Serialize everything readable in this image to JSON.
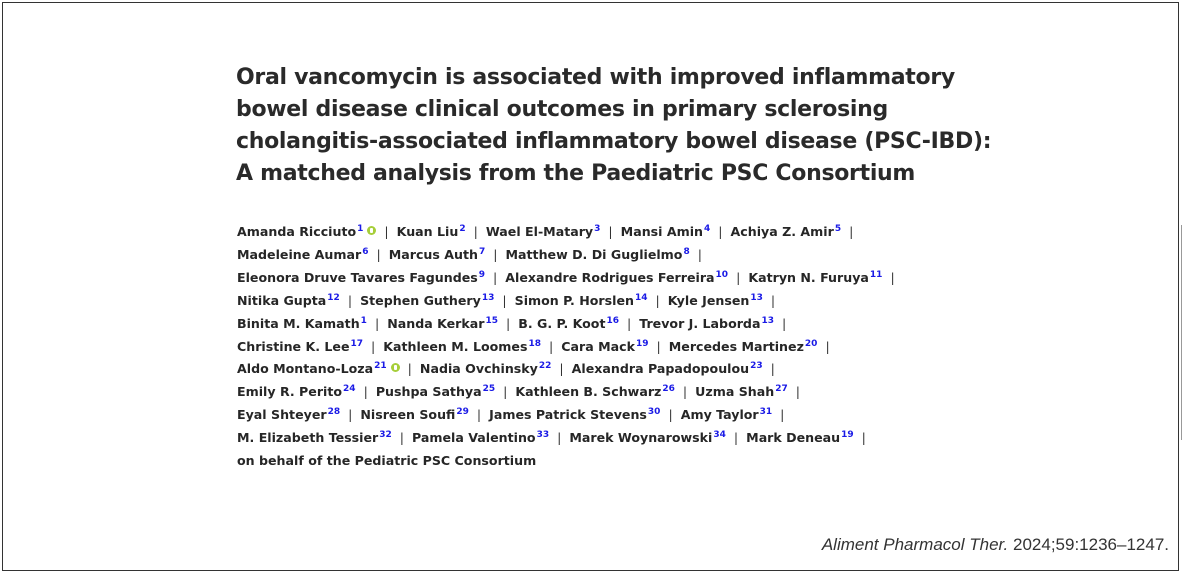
{
  "title_lines": [
    "Oral vancomycin is associated with improved inflammatory",
    "bowel disease clinical outcomes in primary sclerosing",
    "cholangitis-associated inflammatory bowel disease (PSC-IBD):",
    "A matched analysis from the Paediatric PSC Consortium"
  ],
  "author_lines": [
    [
      {
        "name": "Amanda Ricciuto",
        "sup": "1",
        "orcid": true
      },
      {
        "name": "Kuan Liu",
        "sup": "2"
      },
      {
        "name": "Wael El-Matary",
        "sup": "3"
      },
      {
        "name": "Mansi Amin",
        "sup": "4"
      },
      {
        "name": "Achiya Z. Amir",
        "sup": "5",
        "trailing_sep": true
      }
    ],
    [
      {
        "name": "Madeleine Aumar",
        "sup": "6"
      },
      {
        "name": "Marcus Auth",
        "sup": "7"
      },
      {
        "name": "Matthew D. Di Guglielmo",
        "sup": "8",
        "trailing_sep": true
      }
    ],
    [
      {
        "name": "Eleonora Druve Tavares Fagundes",
        "sup": "9"
      },
      {
        "name": "Alexandre Rodrigues Ferreira",
        "sup": "10"
      },
      {
        "name": "Katryn N. Furuya",
        "sup": "11",
        "trailing_sep": true
      }
    ],
    [
      {
        "name": "Nitika Gupta",
        "sup": "12"
      },
      {
        "name": "Stephen Guthery",
        "sup": "13"
      },
      {
        "name": "Simon P. Horslen",
        "sup": "14"
      },
      {
        "name": "Kyle Jensen",
        "sup": "13",
        "trailing_sep": true
      }
    ],
    [
      {
        "name": "Binita M. Kamath",
        "sup": "1"
      },
      {
        "name": "Nanda Kerkar",
        "sup": "15"
      },
      {
        "name": "B. G. P. Koot",
        "sup": "16"
      },
      {
        "name": "Trevor J. Laborda",
        "sup": "13",
        "trailing_sep": true
      }
    ],
    [
      {
        "name": "Christine K. Lee",
        "sup": "17"
      },
      {
        "name": "Kathleen M. Loomes",
        "sup": "18"
      },
      {
        "name": "Cara Mack",
        "sup": "19"
      },
      {
        "name": "Mercedes Martinez",
        "sup": "20",
        "trailing_sep": true
      }
    ],
    [
      {
        "name": "Aldo Montano-Loza",
        "sup": "21",
        "orcid": true
      },
      {
        "name": "Nadia Ovchinsky",
        "sup": "22"
      },
      {
        "name": "Alexandra Papadopoulou",
        "sup": "23",
        "trailing_sep": true
      }
    ],
    [
      {
        "name": "Emily R. Perito",
        "sup": "24"
      },
      {
        "name": "Pushpa Sathya",
        "sup": "25"
      },
      {
        "name": "Kathleen B. Schwarz",
        "sup": "26"
      },
      {
        "name": "Uzma Shah",
        "sup": "27",
        "trailing_sep": true
      }
    ],
    [
      {
        "name": "Eyal Shteyer",
        "sup": "28"
      },
      {
        "name": "Nisreen Soufi",
        "sup": "29"
      },
      {
        "name": "James Patrick Stevens",
        "sup": "30"
      },
      {
        "name": "Amy Taylor",
        "sup": "31",
        "trailing_sep": true
      }
    ],
    [
      {
        "name": "M. Elizabeth Tessier",
        "sup": "32"
      },
      {
        "name": "Pamela Valentino",
        "sup": "33"
      },
      {
        "name": "Marek Woynarowski",
        "sup": "34"
      },
      {
        "name": "Mark Deneau",
        "sup": "19",
        "trailing_sep": true
      }
    ],
    [
      {
        "name": "on behalf of the Pediatric PSC Consortium"
      }
    ]
  ],
  "separator": "|",
  "citation": {
    "journal": "Aliment Pharmacol Ther.",
    "details": " 2024;59:1236–1247."
  },
  "colors": {
    "superscript": "#1a1ae6",
    "orcid": "#a6ce39",
    "text": "#262626"
  },
  "icons": {
    "orcid": "orcid-icon"
  }
}
